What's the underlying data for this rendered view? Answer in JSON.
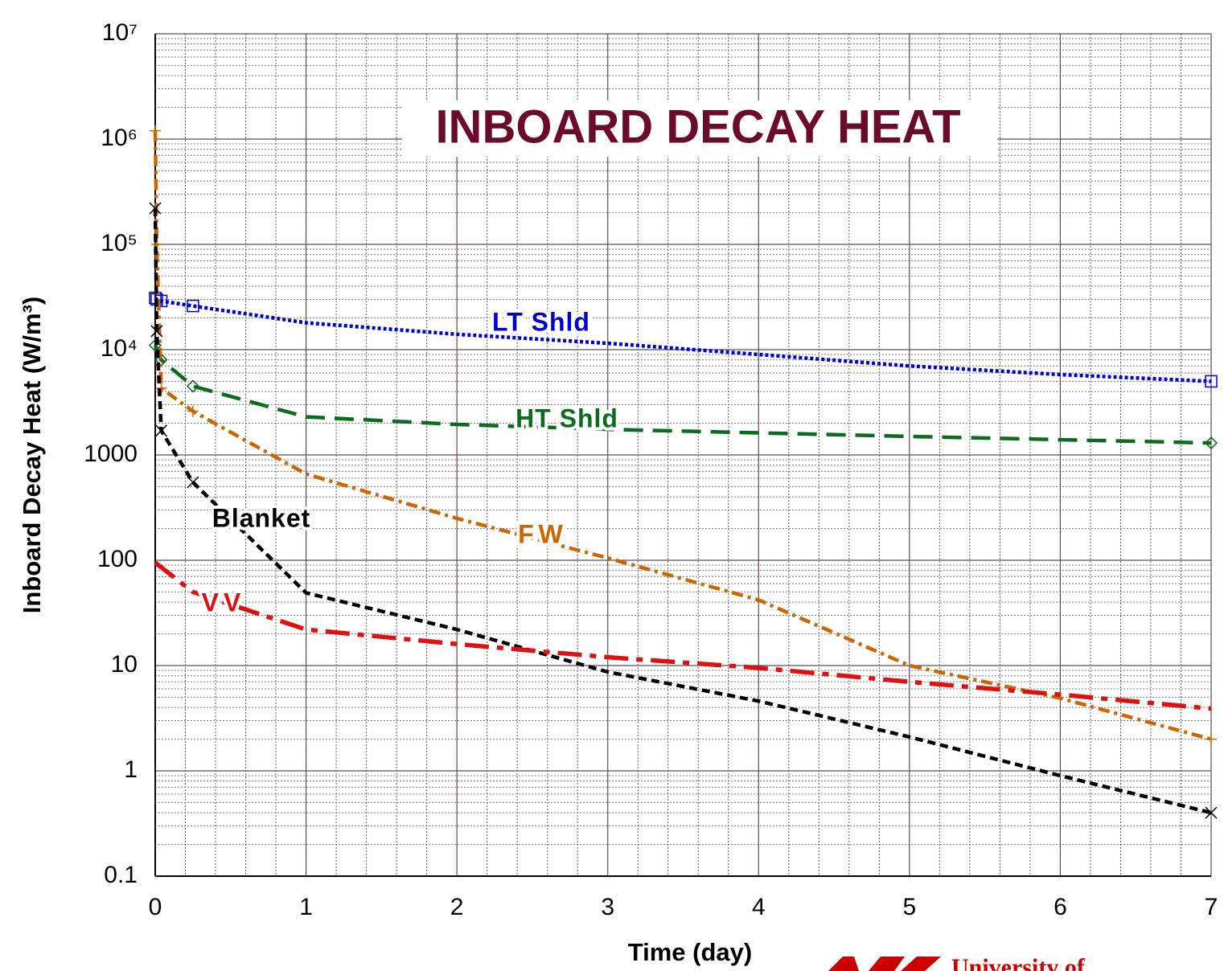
{
  "chart_data": {
    "type": "line",
    "title": "INBOARD DECAY HEAT",
    "x_label": "Time  (day)",
    "y_label": "Inboard  Decay  Heat  (W/m³)",
    "logo_text": "University of",
    "log_y": true,
    "grid": true,
    "xlim": [
      0,
      7
    ],
    "xticks": [
      0,
      1,
      2,
      3,
      4,
      5,
      6,
      7
    ],
    "ylim": [
      0.1,
      10000000
    ],
    "yticks": [
      0.1,
      1,
      10,
      100,
      1000,
      {
        "value": 10000,
        "label": "10⁴"
      },
      {
        "value": 100000,
        "label": "10⁵"
      },
      {
        "value": 1000000,
        "label": "10⁶"
      },
      {
        "value": 10000000,
        "label": "10⁷"
      }
    ],
    "series": [
      {
        "name": "LT Shld",
        "color": "#0000cc",
        "marker": "square",
        "x": [
          0,
          0.01,
          0.04,
          0.25,
          1,
          2,
          3,
          4,
          5,
          6,
          7
        ],
        "values": [
          31000,
          30000,
          29000,
          26000,
          18000,
          14000,
          11500,
          9000,
          7000,
          5800,
          5000
        ]
      },
      {
        "name": "HT Shld",
        "color": "#0b6b1e",
        "marker": "diamond",
        "x": [
          0,
          0.04,
          0.25,
          1,
          2,
          3,
          5,
          7
        ],
        "values": [
          11000,
          8000,
          4500,
          2300,
          1950,
          1750,
          1500,
          1300
        ]
      },
      {
        "name": "FW",
        "color": "#cc6600",
        "marker": "plus",
        "x": [
          0,
          0.01,
          0.04,
          0.25,
          1,
          2,
          3,
          4,
          5,
          6,
          7
        ],
        "values": [
          1200000,
          100000,
          4300,
          2600,
          660,
          250,
          105,
          42,
          10,
          4.9,
          2
        ]
      },
      {
        "name": "Blanket",
        "color": "#000000",
        "marker": "cross",
        "x": [
          0,
          0.01,
          0.04,
          0.25,
          1,
          2,
          3,
          4,
          5,
          6,
          7
        ],
        "values": [
          220000,
          15000,
          1700,
          550,
          49,
          22,
          8.7,
          4.6,
          2.1,
          0.9,
          0.4
        ]
      },
      {
        "name": "VV",
        "color": "#dd1111",
        "marker": "none",
        "x": [
          0,
          0.25,
          1,
          2,
          3,
          4,
          5,
          6,
          7
        ],
        "values": [
          95,
          50,
          22,
          16,
          12,
          9.5,
          7,
          5.3,
          3.9
        ]
      }
    ]
  }
}
